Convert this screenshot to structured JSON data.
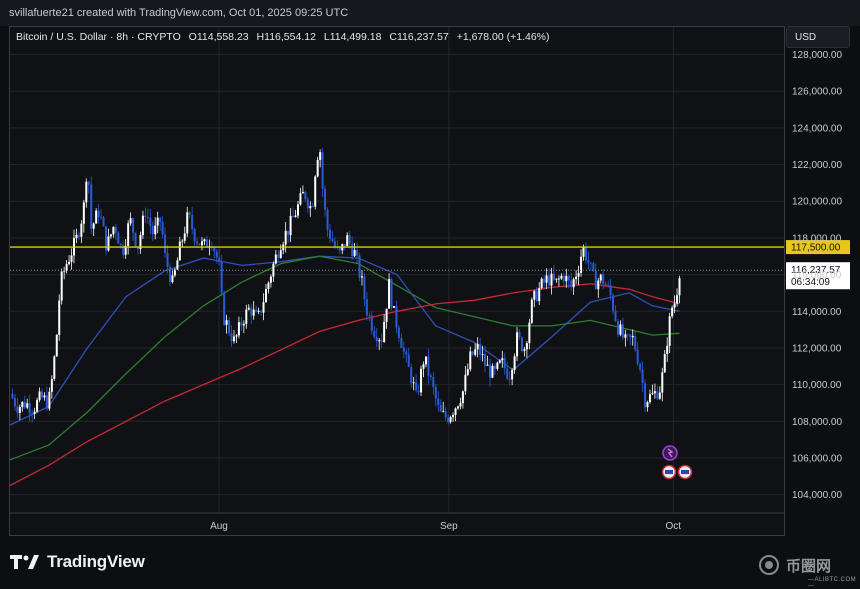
{
  "header": {
    "creator": "svillafuerte21 created with TradingView.com, Oct 01, 2025 09:25 UTC"
  },
  "legend": {
    "symbol": "Bitcoin / U.S. Dollar · 8h · CRYPTO",
    "open_label": "O",
    "open": "114,558.23",
    "high_label": "H",
    "high": "116,554.12",
    "low_label": "L",
    "low": "114,499.18",
    "close_label": "C",
    "close": "116,237.57",
    "change": "+1,678.00 (+1.46%)"
  },
  "currency": "USD",
  "brand": {
    "name": "TradingView"
  },
  "watermark": {
    "text": "币圈网",
    "sub": "—ALIBTC.COM—"
  },
  "colors": {
    "candle_up": "#ffffff",
    "candle_down": "#2a5bd7",
    "ma_fast": "#2f4fb8",
    "ma_mid": "#2e7d32",
    "ma_slow": "#c62836",
    "resistance": "#e8c61b",
    "grid": "#23252c"
  },
  "icons": [
    "tradingview-logo-icon",
    "event-flag-icon",
    "economic-event-icon"
  ],
  "chart_data": {
    "type": "candlestick",
    "timeframe": "8h",
    "ylim": [
      103000,
      129500
    ],
    "y_ticks": [
      "128,000.00",
      "126,000.00",
      "124,000.00",
      "122,000.00",
      "120,000.00",
      "118,000.00",
      "116,000.00",
      "114,000.00",
      "112,000.00",
      "110,000.00",
      "108,000.00",
      "106,000.00",
      "104,000.00"
    ],
    "y_tick_values": [
      128000,
      126000,
      124000,
      122000,
      120000,
      118000,
      116000,
      114000,
      112000,
      110000,
      108000,
      106000,
      104000
    ],
    "x_ticks": [
      "Aug",
      "Sep",
      "Oct"
    ],
    "x_tick_positions": [
      0.27,
      0.567,
      0.857
    ],
    "price_levels": [
      {
        "label": "117,500.00",
        "value": 117500,
        "kind": "resistance"
      },
      {
        "label": "116,237.57",
        "value": 116237.57,
        "kind": "last-price",
        "countdown": "06:34:09"
      }
    ],
    "close_path": [
      [
        0.0,
        109500
      ],
      [
        0.01,
        108800
      ],
      [
        0.02,
        109000
      ],
      [
        0.03,
        108700
      ],
      [
        0.04,
        109300
      ],
      [
        0.05,
        109000
      ],
      [
        0.055,
        110500
      ],
      [
        0.06,
        112500
      ],
      [
        0.065,
        115500
      ],
      [
        0.072,
        116500
      ],
      [
        0.085,
        117800
      ],
      [
        0.095,
        119500
      ],
      [
        0.1,
        122300
      ],
      [
        0.105,
        118500
      ],
      [
        0.115,
        119500
      ],
      [
        0.125,
        117500
      ],
      [
        0.135,
        118800
      ],
      [
        0.145,
        117200
      ],
      [
        0.155,
        119000
      ],
      [
        0.165,
        117500
      ],
      [
        0.175,
        119500
      ],
      [
        0.185,
        118200
      ],
      [
        0.195,
        119000
      ],
      [
        0.2,
        117000
      ],
      [
        0.21,
        115500
      ],
      [
        0.22,
        117500
      ],
      [
        0.23,
        119200
      ],
      [
        0.24,
        118000
      ],
      [
        0.25,
        117500
      ],
      [
        0.26,
        118000
      ],
      [
        0.27,
        116500
      ],
      [
        0.275,
        113800
      ],
      [
        0.285,
        112800
      ],
      [
        0.29,
        112300
      ],
      [
        0.3,
        113500
      ],
      [
        0.31,
        114200
      ],
      [
        0.32,
        113500
      ],
      [
        0.33,
        115000
      ],
      [
        0.34,
        116500
      ],
      [
        0.35,
        117800
      ],
      [
        0.36,
        118500
      ],
      [
        0.37,
        119500
      ],
      [
        0.38,
        120500
      ],
      [
        0.39,
        119500
      ],
      [
        0.395,
        122000
      ],
      [
        0.4,
        123200
      ],
      [
        0.405,
        120000
      ],
      [
        0.41,
        118500
      ],
      [
        0.42,
        117500
      ],
      [
        0.425,
        117000
      ],
      [
        0.435,
        118000
      ],
      [
        0.445,
        117200
      ],
      [
        0.455,
        115500
      ],
      [
        0.46,
        114200
      ],
      [
        0.47,
        113000
      ],
      [
        0.48,
        112500
      ],
      [
        0.49,
        115500
      ],
      [
        0.495,
        114000
      ],
      [
        0.505,
        112500
      ],
      [
        0.51,
        111500
      ],
      [
        0.52,
        110200
      ],
      [
        0.525,
        109200
      ],
      [
        0.535,
        111500
      ],
      [
        0.545,
        110000
      ],
      [
        0.555,
        108400
      ],
      [
        0.565,
        108200
      ],
      [
        0.575,
        108800
      ],
      [
        0.585,
        109600
      ],
      [
        0.595,
        111500
      ],
      [
        0.605,
        112000
      ],
      [
        0.615,
        111000
      ],
      [
        0.625,
        110500
      ],
      [
        0.635,
        111200
      ],
      [
        0.645,
        110500
      ],
      [
        0.655,
        112500
      ],
      [
        0.665,
        112000
      ],
      [
        0.675,
        114500
      ],
      [
        0.685,
        115300
      ],
      [
        0.695,
        115800
      ],
      [
        0.705,
        115500
      ],
      [
        0.715,
        116000
      ],
      [
        0.725,
        115300
      ],
      [
        0.735,
        116500
      ],
      [
        0.74,
        117500
      ],
      [
        0.745,
        117000
      ],
      [
        0.755,
        115600
      ],
      [
        0.765,
        115800
      ],
      [
        0.775,
        115000
      ],
      [
        0.785,
        113200
      ],
      [
        0.795,
        112300
      ],
      [
        0.805,
        112500
      ],
      [
        0.815,
        110800
      ],
      [
        0.82,
        109200
      ],
      [
        0.83,
        109400
      ],
      [
        0.84,
        109800
      ],
      [
        0.845,
        111000
      ],
      [
        0.85,
        112800
      ],
      [
        0.855,
        114200
      ],
      [
        0.86,
        114600
      ],
      [
        0.865,
        116240
      ]
    ],
    "series": [
      {
        "name": "",
        "kind": "moving-average",
        "points": [
          [
            0.0,
            107800
          ],
          [
            0.05,
            108800
          ],
          [
            0.1,
            112000
          ],
          [
            0.15,
            114800
          ],
          [
            0.2,
            116200
          ],
          [
            0.25,
            116900
          ],
          [
            0.3,
            116500
          ],
          [
            0.35,
            116700
          ],
          [
            0.4,
            117000
          ],
          [
            0.45,
            116900
          ],
          [
            0.5,
            116000
          ],
          [
            0.55,
            113200
          ],
          [
            0.6,
            112300
          ],
          [
            0.65,
            110800
          ],
          [
            0.7,
            112600
          ],
          [
            0.75,
            114500
          ],
          [
            0.8,
            115000
          ],
          [
            0.83,
            114300
          ],
          [
            0.865,
            114000
          ]
        ]
      },
      {
        "name": "",
        "kind": "moving-average",
        "points": [
          [
            0.0,
            105900
          ],
          [
            0.05,
            106700
          ],
          [
            0.1,
            108500
          ],
          [
            0.15,
            110600
          ],
          [
            0.2,
            112600
          ],
          [
            0.25,
            114300
          ],
          [
            0.3,
            115600
          ],
          [
            0.35,
            116600
          ],
          [
            0.4,
            117000
          ],
          [
            0.45,
            116600
          ],
          [
            0.5,
            115400
          ],
          [
            0.55,
            114200
          ],
          [
            0.6,
            113700
          ],
          [
            0.65,
            113200
          ],
          [
            0.7,
            113200
          ],
          [
            0.75,
            113500
          ],
          [
            0.8,
            113000
          ],
          [
            0.83,
            112700
          ],
          [
            0.865,
            112800
          ]
        ]
      },
      {
        "name": "",
        "kind": "moving-average",
        "points": [
          [
            0.0,
            104500
          ],
          [
            0.05,
            105600
          ],
          [
            0.1,
            106900
          ],
          [
            0.15,
            108000
          ],
          [
            0.2,
            109100
          ],
          [
            0.25,
            110000
          ],
          [
            0.3,
            110900
          ],
          [
            0.35,
            111900
          ],
          [
            0.4,
            112900
          ],
          [
            0.45,
            113500
          ],
          [
            0.5,
            114000
          ],
          [
            0.55,
            114400
          ],
          [
            0.6,
            114600
          ],
          [
            0.65,
            115000
          ],
          [
            0.7,
            115300
          ],
          [
            0.75,
            115500
          ],
          [
            0.8,
            115200
          ],
          [
            0.83,
            114800
          ],
          [
            0.865,
            114400
          ]
        ]
      }
    ]
  }
}
